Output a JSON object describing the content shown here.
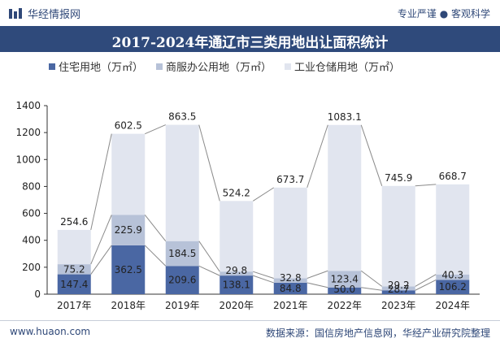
{
  "header": {
    "brand": "华经情报网",
    "slogan": "专业严谨 ● 客观科学",
    "title": "2017-2024年通辽市三类用地出让面积统计"
  },
  "footer": {
    "site": "www.huaon.com",
    "source": "数据来源：国信房地产信息网，华经产业研究院整理"
  },
  "colors": {
    "residential": "#4a67a3",
    "commercial": "#b7c2d8",
    "industrial": "#e1e5ef",
    "titlebar": "#2f4a7b"
  },
  "chart_data": {
    "type": "bar",
    "stacked": true,
    "categories": [
      "2017年",
      "2018年",
      "2019年",
      "2020年",
      "2021年",
      "2022年",
      "2023年",
      "2024年"
    ],
    "series": [
      {
        "name": "住宅用地（万㎡）",
        "values": [
          147.4,
          362.5,
          209.6,
          138.1,
          84.8,
          50.0,
          28.7,
          106.2
        ]
      },
      {
        "name": "商服办公用地（万㎡）",
        "values": [
          75.2,
          225.9,
          184.5,
          29.8,
          32.8,
          123.4,
          29.2,
          40.3
        ]
      },
      {
        "name": "工业仓储用地（万㎡）",
        "values": [
          254.6,
          602.5,
          863.5,
          524.2,
          673.7,
          1083.1,
          745.9,
          668.7
        ]
      }
    ],
    "ylim": [
      0,
      1400
    ],
    "yticks": [
      0,
      200,
      400,
      600,
      800,
      1000,
      1200,
      1400
    ],
    "ytick_labels": [
      "0",
      "200",
      "400",
      "600",
      "800",
      "1000",
      "1200",
      "1400"
    ],
    "value_labels": [
      [
        "147.4",
        "362.5",
        "209.6",
        "138.1",
        "84.8",
        "50.0",
        "28.7",
        "106.2"
      ],
      [
        "75.2",
        "225.9",
        "184.5",
        "29.8",
        "32.8",
        "123.4",
        "29.2",
        "40.3"
      ],
      [
        "254.6",
        "602.5",
        "863.5",
        "524.2",
        "673.7",
        "1083.1",
        "745.9",
        "668.7"
      ]
    ],
    "grid": false,
    "legend": "top"
  }
}
